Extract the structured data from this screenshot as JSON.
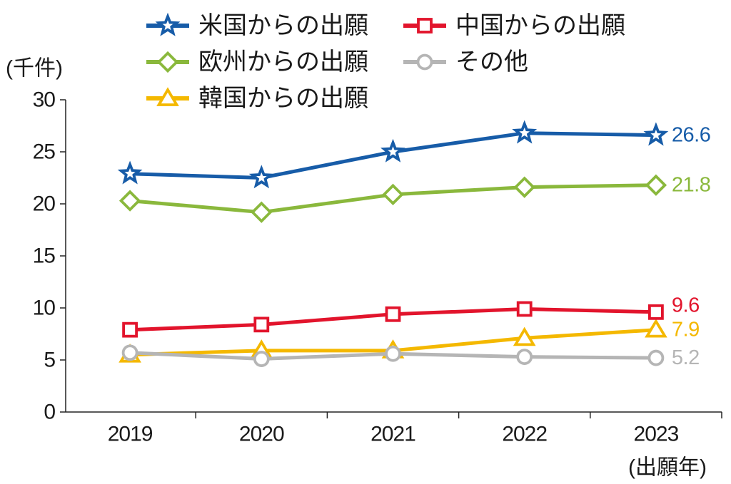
{
  "chart_data": {
    "type": "line",
    "categories": [
      "2019",
      "2020",
      "2021",
      "2022",
      "2023"
    ],
    "ylabel": "(千件)",
    "xlabel": "(出願年)",
    "ylim": [
      0,
      30
    ],
    "yticks": [
      0,
      5,
      10,
      15,
      20,
      25,
      30
    ],
    "grid": false,
    "legend_position": "top",
    "series": [
      {
        "name": "米国からの出願",
        "color": "#175ca8",
        "marker": "star",
        "values": [
          22.9,
          22.5,
          25.0,
          26.8,
          26.6
        ]
      },
      {
        "name": "中国からの出願",
        "color": "#e2142c",
        "marker": "square",
        "values": [
          7.9,
          8.4,
          9.4,
          9.9,
          9.6
        ]
      },
      {
        "name": "欧州からの出願",
        "color": "#8ab83c",
        "marker": "diamond",
        "values": [
          20.3,
          19.2,
          20.9,
          21.6,
          21.8
        ]
      },
      {
        "name": "その他",
        "color": "#b5b5b5",
        "marker": "circle",
        "values": [
          5.7,
          5.1,
          5.6,
          5.3,
          5.2
        ]
      },
      {
        "name": "韓国からの出願",
        "color": "#f4b800",
        "marker": "triangle",
        "values": [
          5.5,
          5.9,
          5.9,
          7.1,
          7.9
        ]
      }
    ]
  }
}
